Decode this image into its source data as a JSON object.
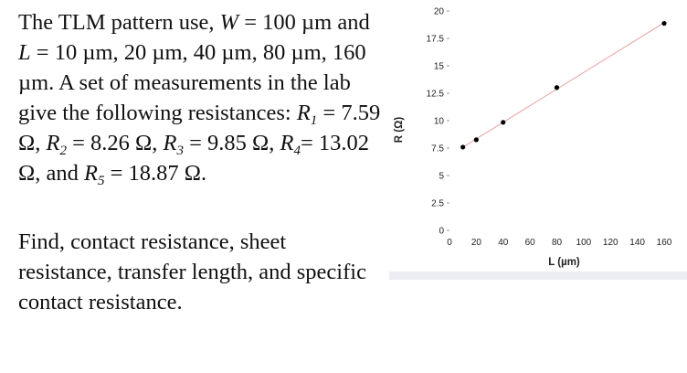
{
  "problem": {
    "line1": "The TLM pattern use, ",
    "W_sym": "W",
    "eq1": " = 100 µm",
    "and": " and ",
    "L_sym": "L",
    "eq2": " = 10 µm, 20 µm, 40 µm, 80 µm, 160 µm. A set of measurements in the lab give the following resistances: ",
    "R": "R",
    "r1_sub": "1",
    "r1_val": " = 7.59 Ω, ",
    "r2_sub": "2",
    "r2_val": " = 8.26 Ω, ",
    "r3_sub": "3",
    "r3_val": " = 9.85 Ω, ",
    "r4_sub": "4",
    "r4_val": "= 13.02 Ω, and ",
    "r5_sub": "5",
    "r5_val": " = 18.87 Ω.",
    "question": "Find, contact resistance, sheet resistance, transfer length, and specific contact resistance."
  },
  "chart_data": {
    "type": "scatter",
    "x": [
      10,
      20,
      40,
      80,
      160
    ],
    "y": [
      7.59,
      8.26,
      9.85,
      13.02,
      18.87
    ],
    "xlabel": "L (µm)",
    "ylabel": "R (Ω)",
    "xlim": [
      0,
      160
    ],
    "ylim": [
      0,
      20
    ],
    "xticks": [
      0,
      20,
      40,
      60,
      80,
      100,
      120,
      140,
      160
    ],
    "yticks": [
      0,
      2.5,
      5,
      7.5,
      10,
      12.5,
      15,
      17.5,
      20
    ],
    "trendline": true,
    "trendline_color": "#e8a0a0",
    "marker_color": "#000000",
    "grid": false
  }
}
